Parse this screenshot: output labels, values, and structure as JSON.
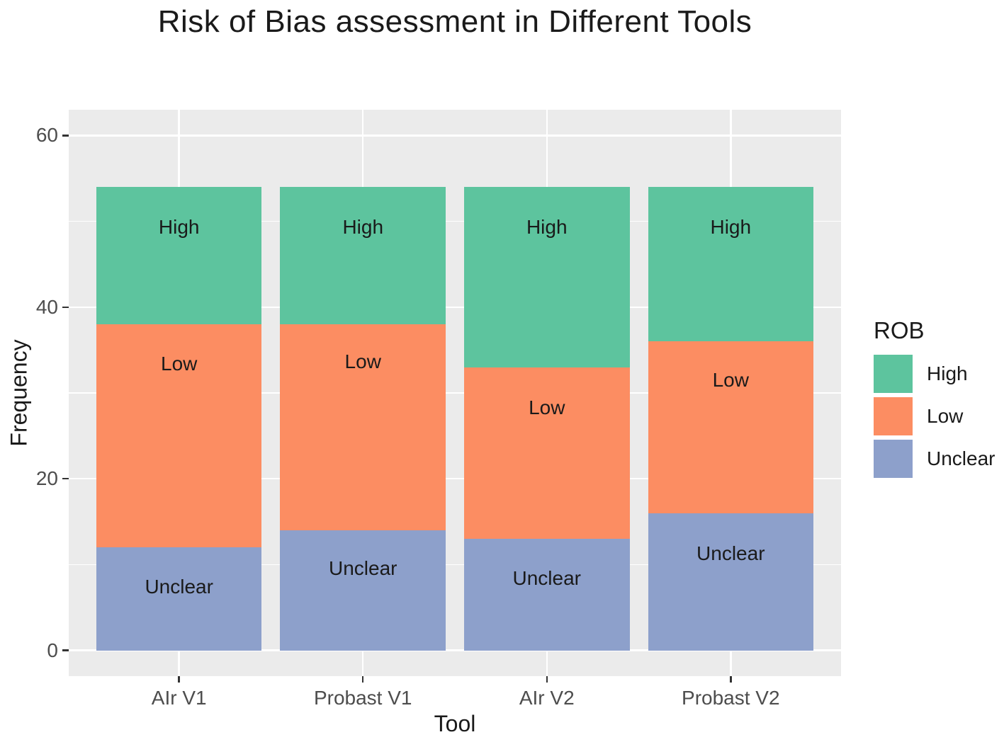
{
  "chart_data": {
    "type": "bar",
    "stacked": true,
    "title": "Risk of Bias assessment in Different Tools",
    "xlabel": "Tool",
    "ylabel": "Frequency",
    "categories": [
      "AIr V1",
      "Probast V1",
      "AIr V2",
      "Probast V2"
    ],
    "series": [
      {
        "name": "Unclear",
        "color": "#8DA0CB",
        "values": [
          12,
          14,
          13,
          16
        ],
        "label_y": [
          7.4,
          9.5,
          8.4,
          11.3
        ]
      },
      {
        "name": "Low",
        "color": "#FC8D62",
        "values": [
          26,
          24,
          20,
          20
        ],
        "label_y": [
          33.4,
          33.6,
          28.3,
          31.5
        ]
      },
      {
        "name": "High",
        "color": "#5DC49E",
        "values": [
          16,
          16,
          21,
          18
        ],
        "label_y": [
          49.3,
          49.3,
          49.3,
          49.3
        ]
      }
    ],
    "bar_totals": [
      54,
      54,
      54,
      54
    ],
    "ylim": [
      0,
      60
    ],
    "yticks": [
      0,
      20,
      40,
      60
    ],
    "yminor_gridlines": [
      10,
      30,
      50
    ],
    "grid": true,
    "legend": {
      "title": "ROB",
      "position": "right",
      "entries": [
        "High",
        "Low",
        "Unclear"
      ]
    }
  },
  "colors": {
    "panel_background": "#EBEBEB",
    "gridline": "#FFFFFF",
    "axis_text": "#4D4D4D",
    "text": "#1A1A1A",
    "high": "#5DC49E",
    "low": "#FC8D62",
    "unclear": "#8DA0CB"
  }
}
